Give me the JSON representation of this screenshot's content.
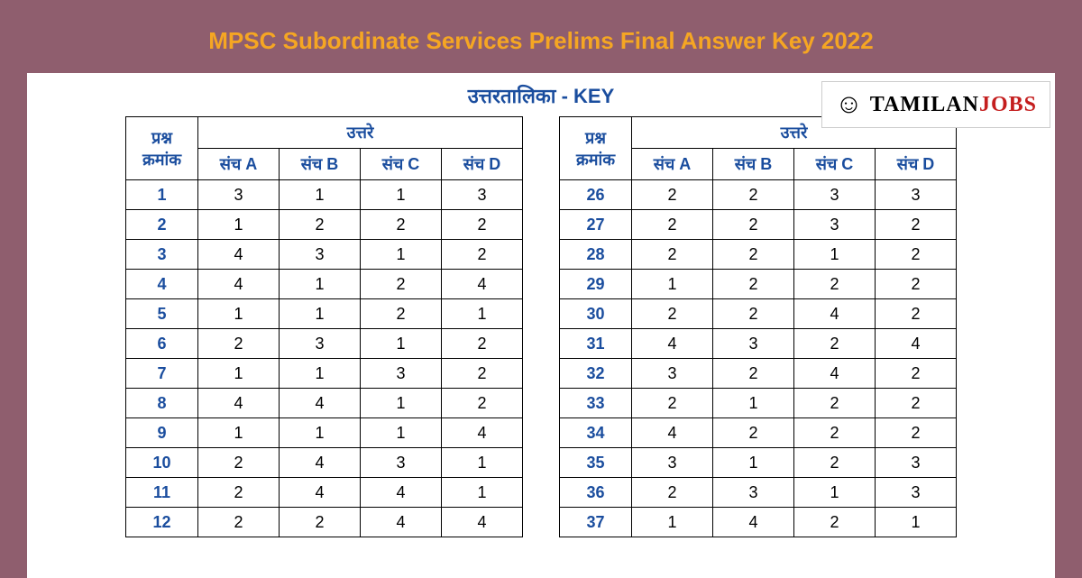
{
  "page_title": "MPSC Subordinate Services Prelims Final Answer Key 2022",
  "key_heading": "उत्तरतालिका - KEY",
  "headers": {
    "question": "प्रश्न क्रमांक",
    "answers": "उत्तरे",
    "setA": "संच A",
    "setB": "संच B",
    "setC": "संच C",
    "setD": "संच D"
  },
  "colors": {
    "background": "#8f5e6e",
    "title": "#f5a623",
    "header_text": "#1a4d9e",
    "border": "#000000",
    "content_bg": "#ffffff"
  },
  "logo": {
    "text1": "TAMILAN",
    "text2": "JOBS"
  },
  "table_left": {
    "rows": [
      {
        "q": "1",
        "a": "3",
        "b": "1",
        "c": "1",
        "d": "3"
      },
      {
        "q": "2",
        "a": "1",
        "b": "2",
        "c": "2",
        "d": "2"
      },
      {
        "q": "3",
        "a": "4",
        "b": "3",
        "c": "1",
        "d": "2"
      },
      {
        "q": "4",
        "a": "4",
        "b": "1",
        "c": "2",
        "d": "4"
      },
      {
        "q": "5",
        "a": "1",
        "b": "1",
        "c": "2",
        "d": "1"
      },
      {
        "q": "6",
        "a": "2",
        "b": "3",
        "c": "1",
        "d": "2"
      },
      {
        "q": "7",
        "a": "1",
        "b": "1",
        "c": "3",
        "d": "2"
      },
      {
        "q": "8",
        "a": "4",
        "b": "4",
        "c": "1",
        "d": "2"
      },
      {
        "q": "9",
        "a": "1",
        "b": "1",
        "c": "1",
        "d": "4"
      },
      {
        "q": "10",
        "a": "2",
        "b": "4",
        "c": "3",
        "d": "1"
      },
      {
        "q": "11",
        "a": "2",
        "b": "4",
        "c": "4",
        "d": "1"
      },
      {
        "q": "12",
        "a": "2",
        "b": "2",
        "c": "4",
        "d": "4"
      }
    ]
  },
  "table_right": {
    "rows": [
      {
        "q": "26",
        "a": "2",
        "b": "2",
        "c": "3",
        "d": "3"
      },
      {
        "q": "27",
        "a": "2",
        "b": "2",
        "c": "3",
        "d": "2"
      },
      {
        "q": "28",
        "a": "2",
        "b": "2",
        "c": "1",
        "d": "2"
      },
      {
        "q": "29",
        "a": "1",
        "b": "2",
        "c": "2",
        "d": "2"
      },
      {
        "q": "30",
        "a": "2",
        "b": "2",
        "c": "4",
        "d": "2"
      },
      {
        "q": "31",
        "a": "4",
        "b": "3",
        "c": "2",
        "d": "4"
      },
      {
        "q": "32",
        "a": "3",
        "b": "2",
        "c": "4",
        "d": "2"
      },
      {
        "q": "33",
        "a": "2",
        "b": "1",
        "c": "2",
        "d": "2"
      },
      {
        "q": "34",
        "a": "4",
        "b": "2",
        "c": "2",
        "d": "2"
      },
      {
        "q": "35",
        "a": "3",
        "b": "1",
        "c": "2",
        "d": "3"
      },
      {
        "q": "36",
        "a": "2",
        "b": "3",
        "c": "1",
        "d": "3"
      },
      {
        "q": "37",
        "a": "1",
        "b": "4",
        "c": "2",
        "d": "1"
      }
    ]
  }
}
